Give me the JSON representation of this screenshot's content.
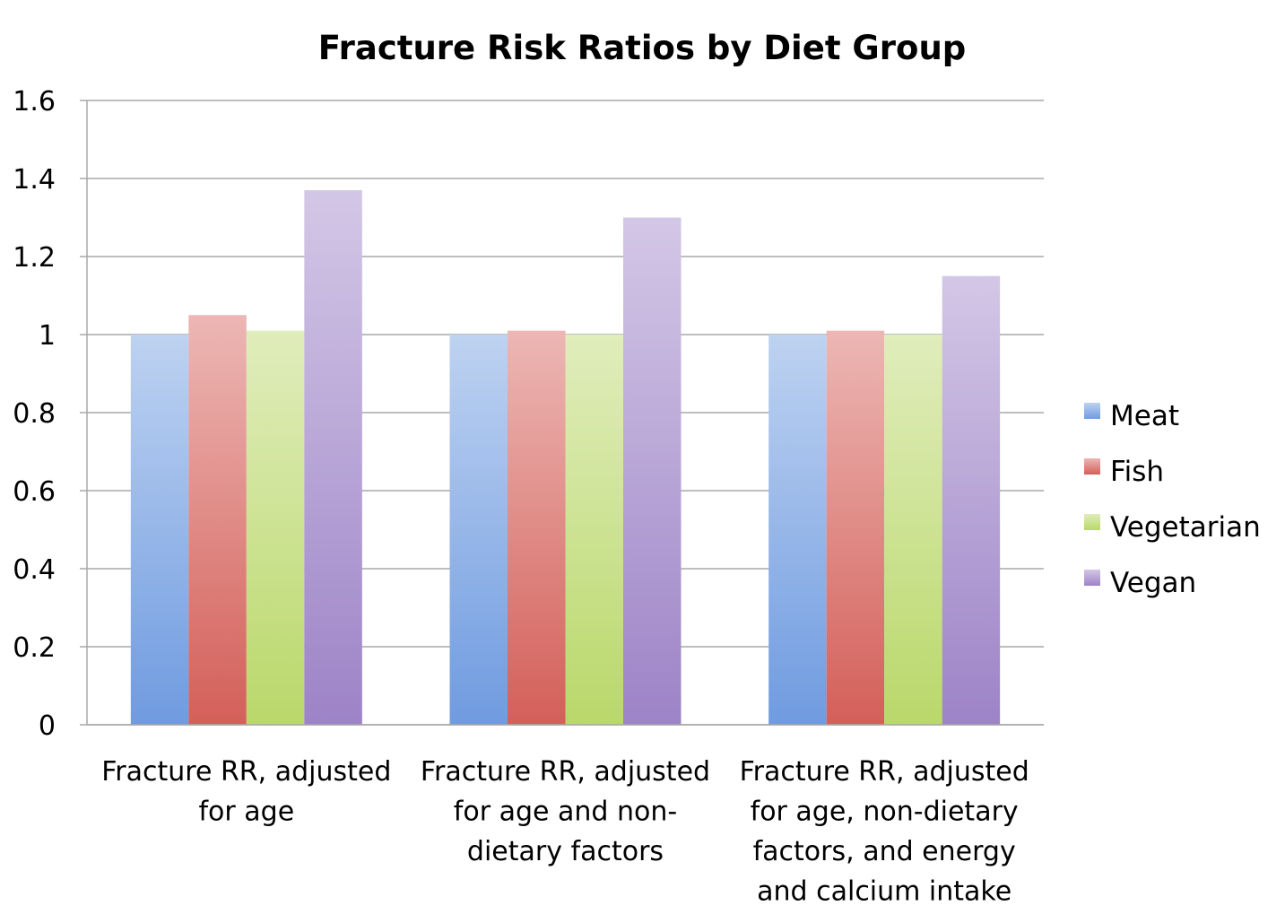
{
  "chart_data": {
    "type": "bar",
    "title": "Fracture Risk Ratios by Diet Group",
    "xlabel": "",
    "ylabel": "",
    "ylim": [
      0,
      1.6
    ],
    "yticks": [
      0,
      0.2,
      0.4,
      0.6,
      0.8,
      1,
      1.2,
      1.4,
      1.6
    ],
    "ytick_labels": [
      "0",
      "0.2",
      "0.4",
      "0.6",
      "0.8",
      "1",
      "1.2",
      "1.4",
      "1.6"
    ],
    "grid": true,
    "legend": "right",
    "categories": [
      [
        "Fracture RR, adjusted",
        "for age"
      ],
      [
        "Fracture RR, adjusted",
        "for age and non-",
        "dietary factors"
      ],
      [
        "Fracture RR, adjusted",
        "for age, non-dietary",
        "factors, and energy",
        "and calcium intake"
      ]
    ],
    "series": [
      {
        "name": "Meat",
        "color": "#6f9be0",
        "values": [
          1.0,
          1.0,
          1.0
        ]
      },
      {
        "name": "Fish",
        "color": "#d45f59",
        "values": [
          1.05,
          1.01,
          1.01
        ]
      },
      {
        "name": "Vegetarian",
        "color": "#b9d86a",
        "values": [
          1.01,
          1.0,
          1.0
        ]
      },
      {
        "name": "Vegan",
        "color": "#9d83c7",
        "values": [
          1.37,
          1.3,
          1.15
        ]
      }
    ]
  }
}
